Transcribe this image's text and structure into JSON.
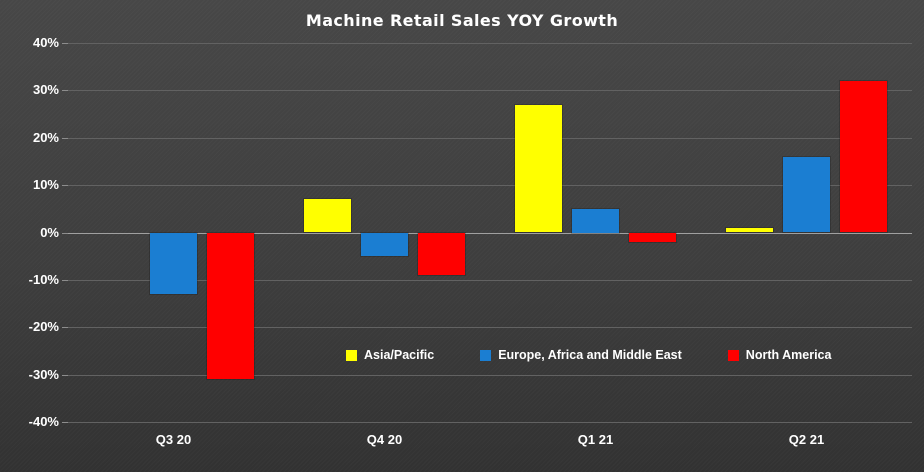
{
  "chart_data": {
    "type": "bar",
    "title": "Machine Retail Sales YOY Growth",
    "categories": [
      "Q3 20",
      "Q4 20",
      "Q1 21",
      "Q2 21"
    ],
    "series": [
      {
        "name": "Asia/Pacific",
        "color": "#ffff00",
        "values": [
          0,
          7,
          27,
          1
        ]
      },
      {
        "name": "Europe, Africa and Middle East",
        "color": "#1b7ed2",
        "values": [
          -13,
          -5,
          5,
          16
        ]
      },
      {
        "name": "North America",
        "color": "#ff0000",
        "values": [
          -31,
          -9,
          -2,
          32
        ]
      }
    ],
    "ylim": [
      -40,
      40
    ],
    "ytick_step": 10,
    "ytick_labels": [
      "40%",
      "30%",
      "20%",
      "10%",
      "0%",
      "-10%",
      "-20%",
      "-30%",
      "-40%"
    ],
    "grid": true,
    "legend_position": "inside-bottom-center",
    "colors": {
      "background": "#3e3e3e",
      "gridline": "#626262",
      "zero_line": "#a0a0a0",
      "text": "#ffffff"
    }
  }
}
